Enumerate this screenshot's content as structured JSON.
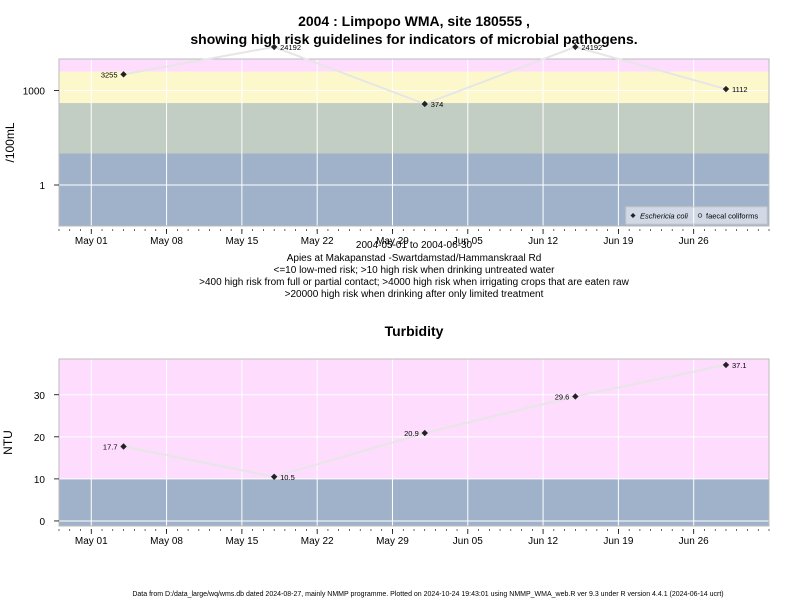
{
  "title_line1": "2004 : Limpopo WMA, site 180555 ,",
  "title_line2": "showing high risk guidelines for indicators of microbial pathogens.",
  "microbial_caption": [
    "2004-05-01 to 2004-06-30",
    "Apies at Makapanstad -Swartdamstad/Hammanskraal Rd",
    "<=10 low-med risk; >10 high risk when drinking untreated water",
    ">400 high risk from full or partial contact; >4000 high risk when irrigating crops that are eaten raw",
    ">20000 high risk when drinking after only limited treatment"
  ],
  "footer": "Data from D:/data_large/wq/wms.db dated 2024-08-27, mainly NMMP programme. Plotted on 2024-10-24 19:43:01 using NMMP_WMA_web.R ver 9.3 under R version 4.4.1 (2024-06-14 ucrt)",
  "colors": {
    "blue_band": "#a0b2ca",
    "green_band": "#c2cdc3",
    "yellow_band": "#fdf8cc",
    "pink_band": "#fddcfd",
    "red_band": "#f7b3c6",
    "line": "#e6e6e6",
    "grid": "#ffffff"
  },
  "chart_data": [
    {
      "type": "line",
      "title": "",
      "ylabel": "/100mL",
      "xlabel": "",
      "y_scale": "log10",
      "ylim": [
        0.05,
        10000
      ],
      "xlim": [
        "2004-04-28",
        "2004-07-03"
      ],
      "x_ticks": [
        "May 01",
        "May 08",
        "May 15",
        "May 22",
        "May 29",
        "Jun 05",
        "Jun 12",
        "Jun 19",
        "Jun 26"
      ],
      "x_tick_dates": [
        "2004-05-01",
        "2004-05-08",
        "2004-05-15",
        "2004-05-22",
        "2004-05-29",
        "2004-06-05",
        "2004-06-12",
        "2004-06-19",
        "2004-06-26"
      ],
      "y_ticks": [
        1,
        1000
      ],
      "y_tick_labels": [
        "1",
        "1000"
      ],
      "risk_bands": [
        {
          "from": 0.05,
          "to": 10,
          "color": "#a0b2ca"
        },
        {
          "from": 10,
          "to": 400,
          "color": "#c2cdc3"
        },
        {
          "from": 400,
          "to": 4000,
          "color": "#fdf8cc"
        },
        {
          "from": 4000,
          "to": 20000,
          "color": "#fddcfd"
        },
        {
          "from": 20000,
          "to": 10000000,
          "color": "#f7b3c6"
        }
      ],
      "series": [
        {
          "name": "Eschericia coli",
          "x": [
            "2004-05-04",
            "2004-05-18",
            "2004-06-01",
            "2004-06-15",
            "2004-06-29"
          ],
          "values": [
            3255,
            24192,
            374,
            24192,
            1112
          ],
          "labels": [
            "3255",
            "24192",
            "374",
            "24192",
            "1112"
          ]
        }
      ],
      "legend_entries": [
        "Eschericia coli",
        "faecal coliforms"
      ],
      "legend_position": "bottom-right",
      "grid": true
    },
    {
      "type": "line",
      "title": "Turbidity",
      "ylabel": "NTU",
      "xlabel": "",
      "ylim": [
        -1.2,
        38.5
      ],
      "xlim": [
        "2004-04-28",
        "2004-07-03"
      ],
      "x_ticks": [
        "May 01",
        "May 08",
        "May 15",
        "May 22",
        "May 29",
        "Jun 05",
        "Jun 12",
        "Jun 19",
        "Jun 26"
      ],
      "x_tick_dates": [
        "2004-05-01",
        "2004-05-08",
        "2004-05-15",
        "2004-05-22",
        "2004-05-29",
        "2004-06-05",
        "2004-06-12",
        "2004-06-19",
        "2004-06-26"
      ],
      "y_ticks": [
        0,
        10,
        20,
        30
      ],
      "y_tick_labels": [
        "0",
        "10",
        "20",
        "30"
      ],
      "risk_bands": [
        {
          "from": -1.2,
          "to": 10,
          "color": "#a0b2ca"
        },
        {
          "from": 10,
          "to": 38.5,
          "color": "#fddcfd"
        }
      ],
      "series": [
        {
          "x": [
            "2004-05-04",
            "2004-05-18",
            "2004-06-01",
            "2004-06-15",
            "2004-06-29"
          ],
          "values": [
            17.7,
            10.5,
            20.9,
            29.6,
            37.1
          ],
          "labels": [
            "17.7",
            "10.5",
            "20.9",
            "29.6",
            "37.1"
          ]
        }
      ],
      "grid": true
    }
  ]
}
